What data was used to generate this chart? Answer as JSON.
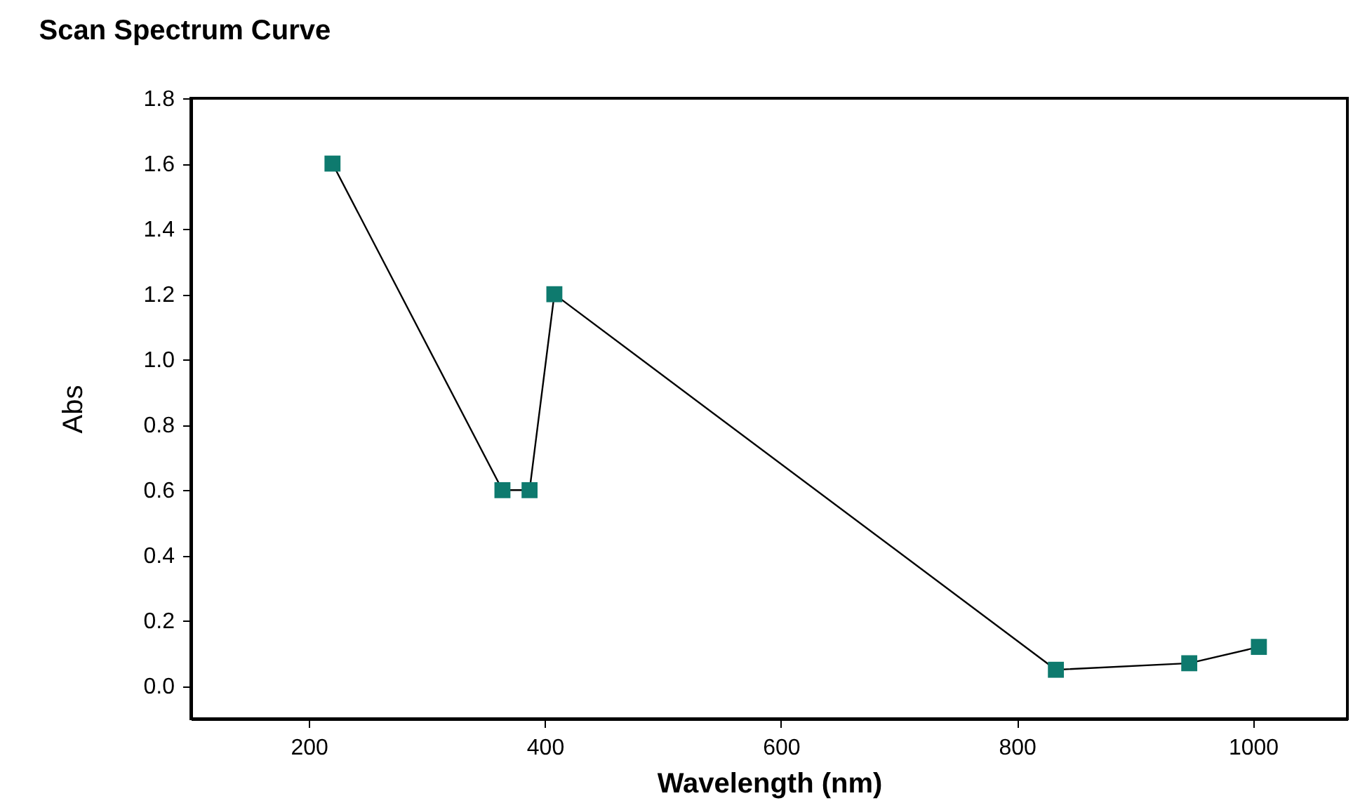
{
  "chart_data": {
    "type": "line",
    "title": "Scan Spectrum Curve",
    "xlabel": "Wavelength (nm)",
    "ylabel": "Abs",
    "x": [
      220,
      364,
      387,
      408,
      833,
      946,
      1005
    ],
    "series": [
      {
        "color": "#0e7a6e",
        "values": [
          1.6,
          0.6,
          0.6,
          1.2,
          0.05,
          0.07,
          0.12
        ]
      }
    ],
    "marker": "square",
    "line_style": "solid",
    "xlim": [
      100,
      1080
    ],
    "xticks": [
      200,
      400,
      600,
      800,
      1000
    ],
    "ylim": [
      -0.1,
      1.8
    ],
    "yticks": [
      {
        "value": 0,
        "label": "0.0"
      },
      0.2,
      0.4,
      0.6,
      0.8,
      {
        "value": 1,
        "label": "1.0"
      },
      1.2,
      1.4,
      1.6,
      1.8
    ],
    "grid": false
  }
}
